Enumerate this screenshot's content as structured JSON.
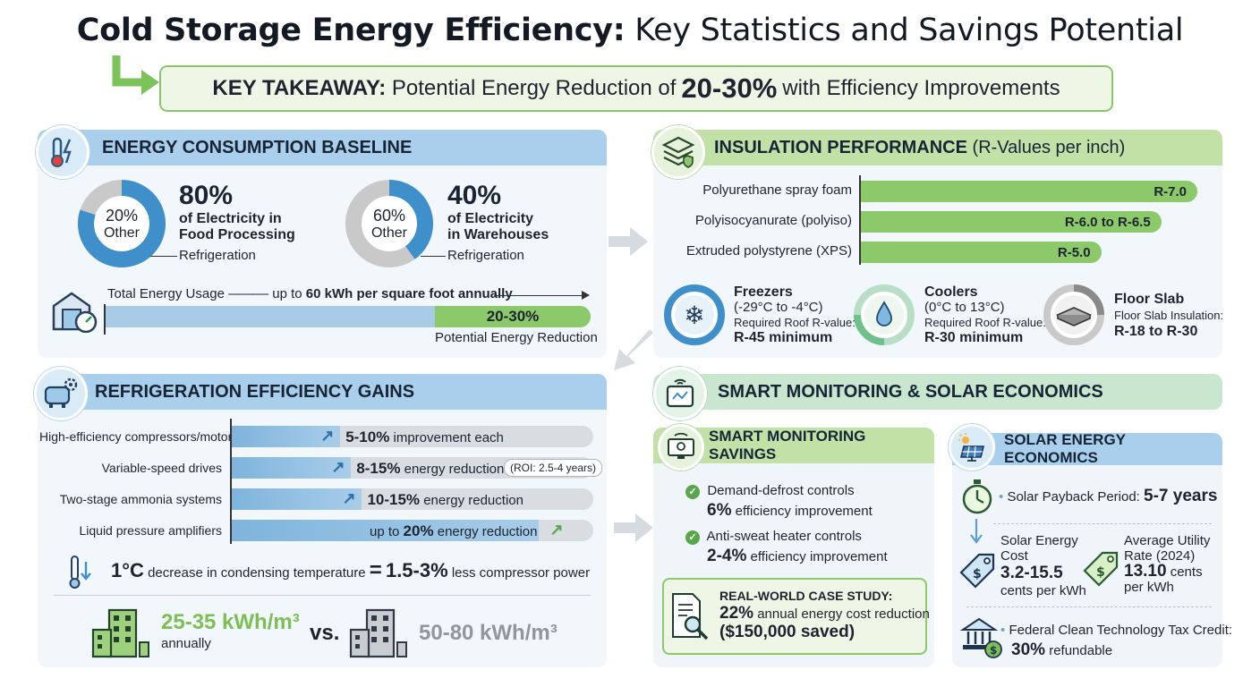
{
  "title": {
    "bold": "Cold Storage Energy Efficiency:",
    "rest": "Key Statistics and Savings Potential"
  },
  "takeaway": {
    "label": "KEY TAKEAWAY:",
    "pre": "Potential Energy Reduction of",
    "value": "20-30%",
    "post": "with Efficiency Improvements"
  },
  "baseline": {
    "header": "ENERGY CONSUMPTION BASELINE",
    "food": {
      "pct": "80%",
      "line1": "of Electricity in",
      "line2": "Food Processing",
      "other_pct": "20%",
      "other_label": "Other",
      "slice_label": "Refrigeration",
      "value": 80
    },
    "warehouse": {
      "pct": "40%",
      "line1": "of Electricity",
      "line2": "in Warehouses",
      "other_pct": "60%",
      "other_label": "Other",
      "slice_label": "Refrigeration",
      "value": 40
    },
    "usage_label": "Total Energy Usage",
    "usage_pre": "up to",
    "usage_value": "60 kWh per square foot annually",
    "reduction_pct": "20-30%",
    "reduction_label": "Potential Energy Reduction"
  },
  "insulation": {
    "header": "INSULATION PERFORMANCE",
    "header_sub": "(R-Values per inch)",
    "bars": [
      {
        "label": "Polyurethane spray foam",
        "value_label": "R-7.0",
        "value": 7.0
      },
      {
        "label": "Polyisocyanurate (polyiso)",
        "value_label": "R-6.0 to R-6.5",
        "value": 6.25
      },
      {
        "label": "Extruded polystyrene (XPS)",
        "value_label": "R-5.0",
        "value": 5.0
      }
    ],
    "freezers": {
      "title": "Freezers",
      "range": "(-29°C to -4°C)",
      "req": "Required Roof R-value:",
      "value": "R-45 minimum"
    },
    "coolers": {
      "title": "Coolers",
      "range": "(0°C to 13°C)",
      "req": "Required Roof R-value:",
      "value": "R-30 minimum"
    },
    "floor": {
      "title": "Floor Slab",
      "req": "Floor Slab Insulation:",
      "value": "R-18 to R-30"
    }
  },
  "refrigeration": {
    "header": "REFRIGERATION EFFICIENCY GAINS",
    "rows": [
      {
        "label": "High-efficiency compressors/motors",
        "bold": "5-10%",
        "text": "improvement each",
        "extra": "",
        "fill": 0.3
      },
      {
        "label": "Variable-speed drives",
        "bold": "8-15%",
        "text": "energy reduction",
        "extra": "(ROI: 2.5-4 years)",
        "fill": 0.33
      },
      {
        "label": "Two-stage ammonia systems",
        "bold": "10-15%",
        "text": "energy reduction",
        "extra": "",
        "fill": 0.36
      },
      {
        "label": "Liquid pressure amplifiers",
        "pre": "up to",
        "bold": "20%",
        "text": "energy reduction",
        "extra": "",
        "fill": 0.85
      }
    ],
    "condense": {
      "deg": "1°C",
      "text": "decrease in condensing temperature",
      "eq": "=",
      "value": "1.5-3%",
      "post": "less compressor power"
    },
    "compare": {
      "good": "25-35 kWh/m³",
      "good_sub": "annually",
      "vs": "vs.",
      "bad": "50-80 kWh/m³"
    }
  },
  "smart_solar": {
    "header": "SMART MONITORING & SOLAR ECONOMICS",
    "smart": {
      "header": "SMART MONITORING SAVINGS",
      "items": [
        {
          "label": "Demand-defrost controls",
          "value": "6%",
          "text": "efficiency improvement"
        },
        {
          "label": "Anti-sweat heater controls",
          "value": "2-4%",
          "text": "efficiency improvement"
        }
      ],
      "case_title": "REAL-WORLD CASE STUDY:",
      "case_value": "22%",
      "case_text": "annual energy cost reduction",
      "case_saved": "($150,000 saved)"
    },
    "solar": {
      "header": "SOLAR ENERGY ECONOMICS",
      "payback_label": "Solar Payback Period:",
      "payback_value": "5-7 years",
      "cost_label1": "Solar Energy",
      "cost_label2": "Cost",
      "cost_value": "3.2-15.5",
      "cost_unit": "cents per kWh",
      "util_label1": "Average Utility",
      "util_label2": "Rate (2024)",
      "util_value": "13.10",
      "util_unit1": "cents",
      "util_unit2": "per kWh",
      "tax_label": "Federal Clean Technology Tax Credit:",
      "tax_value": "30%",
      "tax_text": "refundable"
    }
  }
}
